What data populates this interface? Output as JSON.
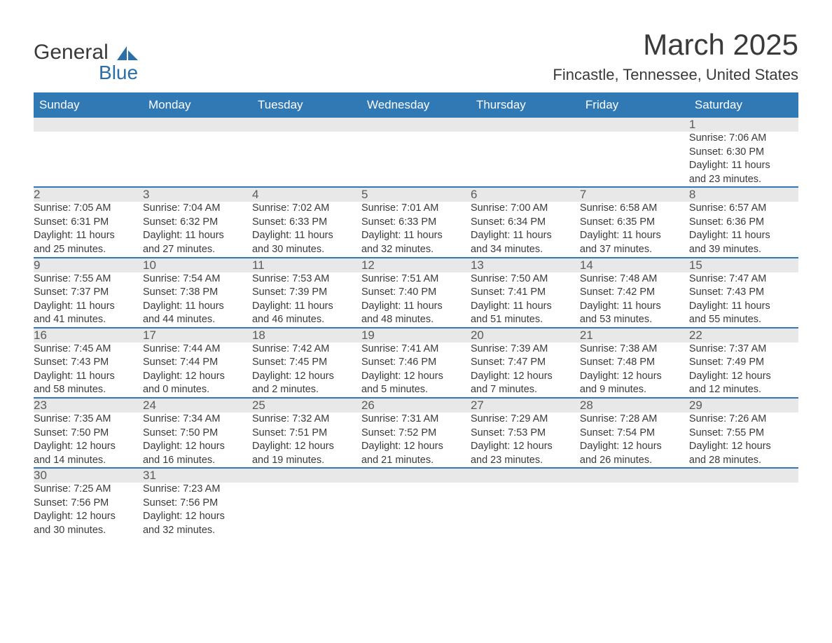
{
  "logo": {
    "text1": "General",
    "text2": "Blue",
    "brand_color": "#2c6fa8"
  },
  "title": "March 2025",
  "location": "Fincastle, Tennessee, United States",
  "colors": {
    "header_bg": "#3179b5",
    "header_text": "#ffffff",
    "daynum_bg": "#e8e8e8",
    "row_divider": "#3179b5",
    "body_text": "#3a3a3a"
  },
  "weekdays": [
    "Sunday",
    "Monday",
    "Tuesday",
    "Wednesday",
    "Thursday",
    "Friday",
    "Saturday"
  ],
  "weeks": [
    [
      null,
      null,
      null,
      null,
      null,
      null,
      {
        "day": "1",
        "sunrise": "Sunrise: 7:06 AM",
        "sunset": "Sunset: 6:30 PM",
        "daylight1": "Daylight: 11 hours",
        "daylight2": "and 23 minutes."
      }
    ],
    [
      {
        "day": "2",
        "sunrise": "Sunrise: 7:05 AM",
        "sunset": "Sunset: 6:31 PM",
        "daylight1": "Daylight: 11 hours",
        "daylight2": "and 25 minutes."
      },
      {
        "day": "3",
        "sunrise": "Sunrise: 7:04 AM",
        "sunset": "Sunset: 6:32 PM",
        "daylight1": "Daylight: 11 hours",
        "daylight2": "and 27 minutes."
      },
      {
        "day": "4",
        "sunrise": "Sunrise: 7:02 AM",
        "sunset": "Sunset: 6:33 PM",
        "daylight1": "Daylight: 11 hours",
        "daylight2": "and 30 minutes."
      },
      {
        "day": "5",
        "sunrise": "Sunrise: 7:01 AM",
        "sunset": "Sunset: 6:33 PM",
        "daylight1": "Daylight: 11 hours",
        "daylight2": "and 32 minutes."
      },
      {
        "day": "6",
        "sunrise": "Sunrise: 7:00 AM",
        "sunset": "Sunset: 6:34 PM",
        "daylight1": "Daylight: 11 hours",
        "daylight2": "and 34 minutes."
      },
      {
        "day": "7",
        "sunrise": "Sunrise: 6:58 AM",
        "sunset": "Sunset: 6:35 PM",
        "daylight1": "Daylight: 11 hours",
        "daylight2": "and 37 minutes."
      },
      {
        "day": "8",
        "sunrise": "Sunrise: 6:57 AM",
        "sunset": "Sunset: 6:36 PM",
        "daylight1": "Daylight: 11 hours",
        "daylight2": "and 39 minutes."
      }
    ],
    [
      {
        "day": "9",
        "sunrise": "Sunrise: 7:55 AM",
        "sunset": "Sunset: 7:37 PM",
        "daylight1": "Daylight: 11 hours",
        "daylight2": "and 41 minutes."
      },
      {
        "day": "10",
        "sunrise": "Sunrise: 7:54 AM",
        "sunset": "Sunset: 7:38 PM",
        "daylight1": "Daylight: 11 hours",
        "daylight2": "and 44 minutes."
      },
      {
        "day": "11",
        "sunrise": "Sunrise: 7:53 AM",
        "sunset": "Sunset: 7:39 PM",
        "daylight1": "Daylight: 11 hours",
        "daylight2": "and 46 minutes."
      },
      {
        "day": "12",
        "sunrise": "Sunrise: 7:51 AM",
        "sunset": "Sunset: 7:40 PM",
        "daylight1": "Daylight: 11 hours",
        "daylight2": "and 48 minutes."
      },
      {
        "day": "13",
        "sunrise": "Sunrise: 7:50 AM",
        "sunset": "Sunset: 7:41 PM",
        "daylight1": "Daylight: 11 hours",
        "daylight2": "and 51 minutes."
      },
      {
        "day": "14",
        "sunrise": "Sunrise: 7:48 AM",
        "sunset": "Sunset: 7:42 PM",
        "daylight1": "Daylight: 11 hours",
        "daylight2": "and 53 minutes."
      },
      {
        "day": "15",
        "sunrise": "Sunrise: 7:47 AM",
        "sunset": "Sunset: 7:43 PM",
        "daylight1": "Daylight: 11 hours",
        "daylight2": "and 55 minutes."
      }
    ],
    [
      {
        "day": "16",
        "sunrise": "Sunrise: 7:45 AM",
        "sunset": "Sunset: 7:43 PM",
        "daylight1": "Daylight: 11 hours",
        "daylight2": "and 58 minutes."
      },
      {
        "day": "17",
        "sunrise": "Sunrise: 7:44 AM",
        "sunset": "Sunset: 7:44 PM",
        "daylight1": "Daylight: 12 hours",
        "daylight2": "and 0 minutes."
      },
      {
        "day": "18",
        "sunrise": "Sunrise: 7:42 AM",
        "sunset": "Sunset: 7:45 PM",
        "daylight1": "Daylight: 12 hours",
        "daylight2": "and 2 minutes."
      },
      {
        "day": "19",
        "sunrise": "Sunrise: 7:41 AM",
        "sunset": "Sunset: 7:46 PM",
        "daylight1": "Daylight: 12 hours",
        "daylight2": "and 5 minutes."
      },
      {
        "day": "20",
        "sunrise": "Sunrise: 7:39 AM",
        "sunset": "Sunset: 7:47 PM",
        "daylight1": "Daylight: 12 hours",
        "daylight2": "and 7 minutes."
      },
      {
        "day": "21",
        "sunrise": "Sunrise: 7:38 AM",
        "sunset": "Sunset: 7:48 PM",
        "daylight1": "Daylight: 12 hours",
        "daylight2": "and 9 minutes."
      },
      {
        "day": "22",
        "sunrise": "Sunrise: 7:37 AM",
        "sunset": "Sunset: 7:49 PM",
        "daylight1": "Daylight: 12 hours",
        "daylight2": "and 12 minutes."
      }
    ],
    [
      {
        "day": "23",
        "sunrise": "Sunrise: 7:35 AM",
        "sunset": "Sunset: 7:50 PM",
        "daylight1": "Daylight: 12 hours",
        "daylight2": "and 14 minutes."
      },
      {
        "day": "24",
        "sunrise": "Sunrise: 7:34 AM",
        "sunset": "Sunset: 7:50 PM",
        "daylight1": "Daylight: 12 hours",
        "daylight2": "and 16 minutes."
      },
      {
        "day": "25",
        "sunrise": "Sunrise: 7:32 AM",
        "sunset": "Sunset: 7:51 PM",
        "daylight1": "Daylight: 12 hours",
        "daylight2": "and 19 minutes."
      },
      {
        "day": "26",
        "sunrise": "Sunrise: 7:31 AM",
        "sunset": "Sunset: 7:52 PM",
        "daylight1": "Daylight: 12 hours",
        "daylight2": "and 21 minutes."
      },
      {
        "day": "27",
        "sunrise": "Sunrise: 7:29 AM",
        "sunset": "Sunset: 7:53 PM",
        "daylight1": "Daylight: 12 hours",
        "daylight2": "and 23 minutes."
      },
      {
        "day": "28",
        "sunrise": "Sunrise: 7:28 AM",
        "sunset": "Sunset: 7:54 PM",
        "daylight1": "Daylight: 12 hours",
        "daylight2": "and 26 minutes."
      },
      {
        "day": "29",
        "sunrise": "Sunrise: 7:26 AM",
        "sunset": "Sunset: 7:55 PM",
        "daylight1": "Daylight: 12 hours",
        "daylight2": "and 28 minutes."
      }
    ],
    [
      {
        "day": "30",
        "sunrise": "Sunrise: 7:25 AM",
        "sunset": "Sunset: 7:56 PM",
        "daylight1": "Daylight: 12 hours",
        "daylight2": "and 30 minutes."
      },
      {
        "day": "31",
        "sunrise": "Sunrise: 7:23 AM",
        "sunset": "Sunset: 7:56 PM",
        "daylight1": "Daylight: 12 hours",
        "daylight2": "and 32 minutes."
      },
      null,
      null,
      null,
      null,
      null
    ]
  ]
}
